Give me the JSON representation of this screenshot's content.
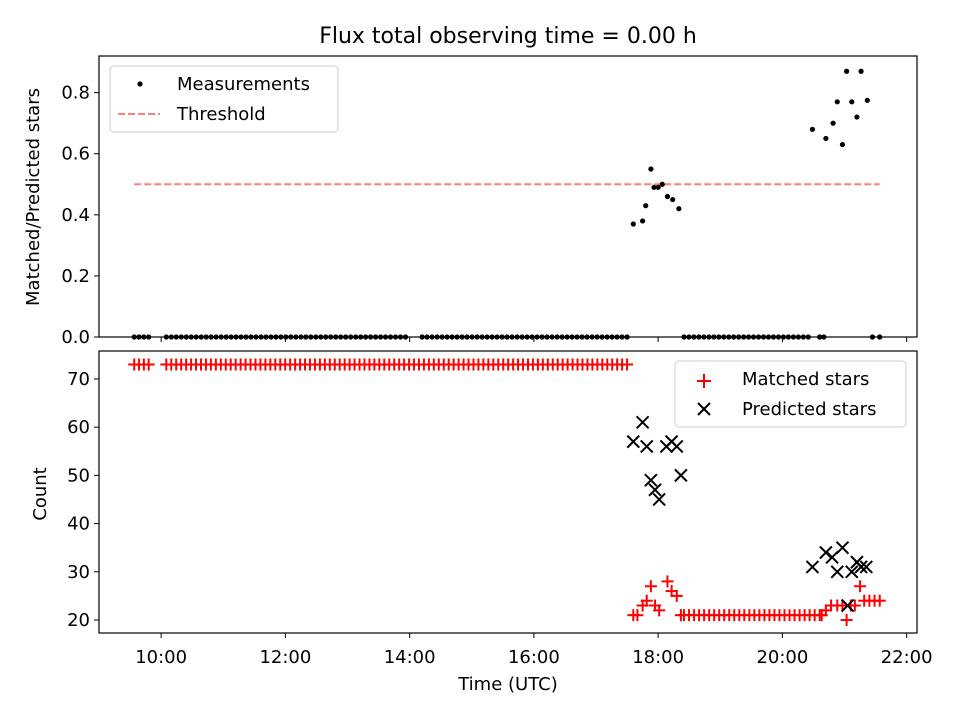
{
  "title": "Flux total observing time = 0.00 h",
  "chart_data": [
    {
      "type": "scatter",
      "x_type": "time-of-day (UTC)",
      "ylabel": "Matched/Predicted stars",
      "ylim": [
        0,
        0.92
      ],
      "yticks": [
        "0.0",
        "0.2",
        "0.4",
        "0.6",
        "0.8"
      ],
      "legend_position": "top-left",
      "series": [
        {
          "name": "Measurements",
          "marker": "dot",
          "color": "#000000",
          "points": [
            [
              "17:36",
              0.37
            ],
            [
              "17:45",
              0.38
            ],
            [
              "17:48",
              0.43
            ],
            [
              "17:53",
              0.55
            ],
            [
              "17:56",
              0.49
            ],
            [
              "18:00",
              0.49
            ],
            [
              "18:04",
              0.5
            ],
            [
              "18:09",
              0.46
            ],
            [
              "18:14",
              0.45
            ],
            [
              "18:20",
              0.42
            ],
            [
              "20:29",
              0.68
            ],
            [
              "20:42",
              0.65
            ],
            [
              "20:49",
              0.7
            ],
            [
              "20:53",
              0.77
            ],
            [
              "20:58",
              0.63
            ],
            [
              "21:02",
              0.87
            ],
            [
              "21:07",
              0.77
            ],
            [
              "21:12",
              0.72
            ],
            [
              "21:16",
              0.87
            ],
            [
              "21:22",
              0.775
            ]
          ],
          "zero_runs": [
            [
              "09:34",
              "09:48"
            ],
            [
              "10:05",
              "13:56"
            ],
            [
              "14:12",
              "17:30"
            ],
            [
              "18:25",
              "20:25"
            ],
            [
              "20:36",
              "20:40"
            ],
            [
              "21:27",
              "21:34"
            ]
          ]
        },
        {
          "name": "Threshold",
          "style": "dashed",
          "color": "#ff7f7f",
          "x_range": [
            "09:34",
            "21:34"
          ],
          "value": 0.5
        }
      ]
    },
    {
      "type": "scatter",
      "x_type": "time-of-day (UTC)",
      "xlabel": "Time (UTC)",
      "ylabel": "Count",
      "xlim": [
        "09:00",
        "22:10"
      ],
      "xticks": [
        "10:00",
        "12:00",
        "14:00",
        "16:00",
        "18:00",
        "20:00",
        "22:00"
      ],
      "ylim": [
        17.3,
        75.8
      ],
      "yticks": [
        "20",
        "30",
        "40",
        "50",
        "60",
        "70"
      ],
      "legend_position": "top-right",
      "series": [
        {
          "name": "Matched stars",
          "marker": "plus",
          "color": "#ff0000",
          "constant_runs": [
            {
              "from": "09:34",
              "to": "09:48",
              "value": 73
            },
            {
              "from": "10:05",
              "to": "17:30",
              "value": 73
            },
            {
              "from": "18:25",
              "to": "20:36",
              "value": 21
            }
          ],
          "points": [
            [
              "17:36",
              21
            ],
            [
              "17:40",
              21
            ],
            [
              "17:45",
              23
            ],
            [
              "17:49",
              24
            ],
            [
              "17:53",
              27
            ],
            [
              "17:57",
              23
            ],
            [
              "18:01",
              22
            ],
            [
              "18:09",
              28
            ],
            [
              "18:13",
              26
            ],
            [
              "18:18",
              25
            ],
            [
              "18:22",
              21
            ],
            [
              "20:38",
              21
            ],
            [
              "20:42",
              22
            ],
            [
              "20:47",
              23
            ],
            [
              "20:53",
              23
            ],
            [
              "20:58",
              23
            ],
            [
              "21:02",
              20
            ],
            [
              "21:06",
              23
            ],
            [
              "21:10",
              23
            ],
            [
              "21:15",
              27
            ],
            [
              "21:19",
              24
            ],
            [
              "21:24",
              24
            ],
            [
              "21:29",
              24
            ],
            [
              "21:34",
              24
            ]
          ]
        },
        {
          "name": "Predicted stars",
          "marker": "x",
          "color": "#000000",
          "points": [
            [
              "17:36",
              57
            ],
            [
              "17:45",
              61
            ],
            [
              "17:49",
              56
            ],
            [
              "17:53",
              49
            ],
            [
              "17:57",
              47
            ],
            [
              "18:01",
              45
            ],
            [
              "18:08",
              56
            ],
            [
              "18:13",
              57
            ],
            [
              "18:18",
              56
            ],
            [
              "18:22",
              50
            ],
            [
              "20:29",
              31
            ],
            [
              "20:42",
              34
            ],
            [
              "20:48",
              33
            ],
            [
              "20:53",
              30
            ],
            [
              "20:58",
              35
            ],
            [
              "21:03",
              23
            ],
            [
              "21:07",
              30
            ],
            [
              "21:12",
              32
            ],
            [
              "21:16",
              31
            ],
            [
              "21:21",
              31
            ]
          ]
        }
      ]
    }
  ]
}
